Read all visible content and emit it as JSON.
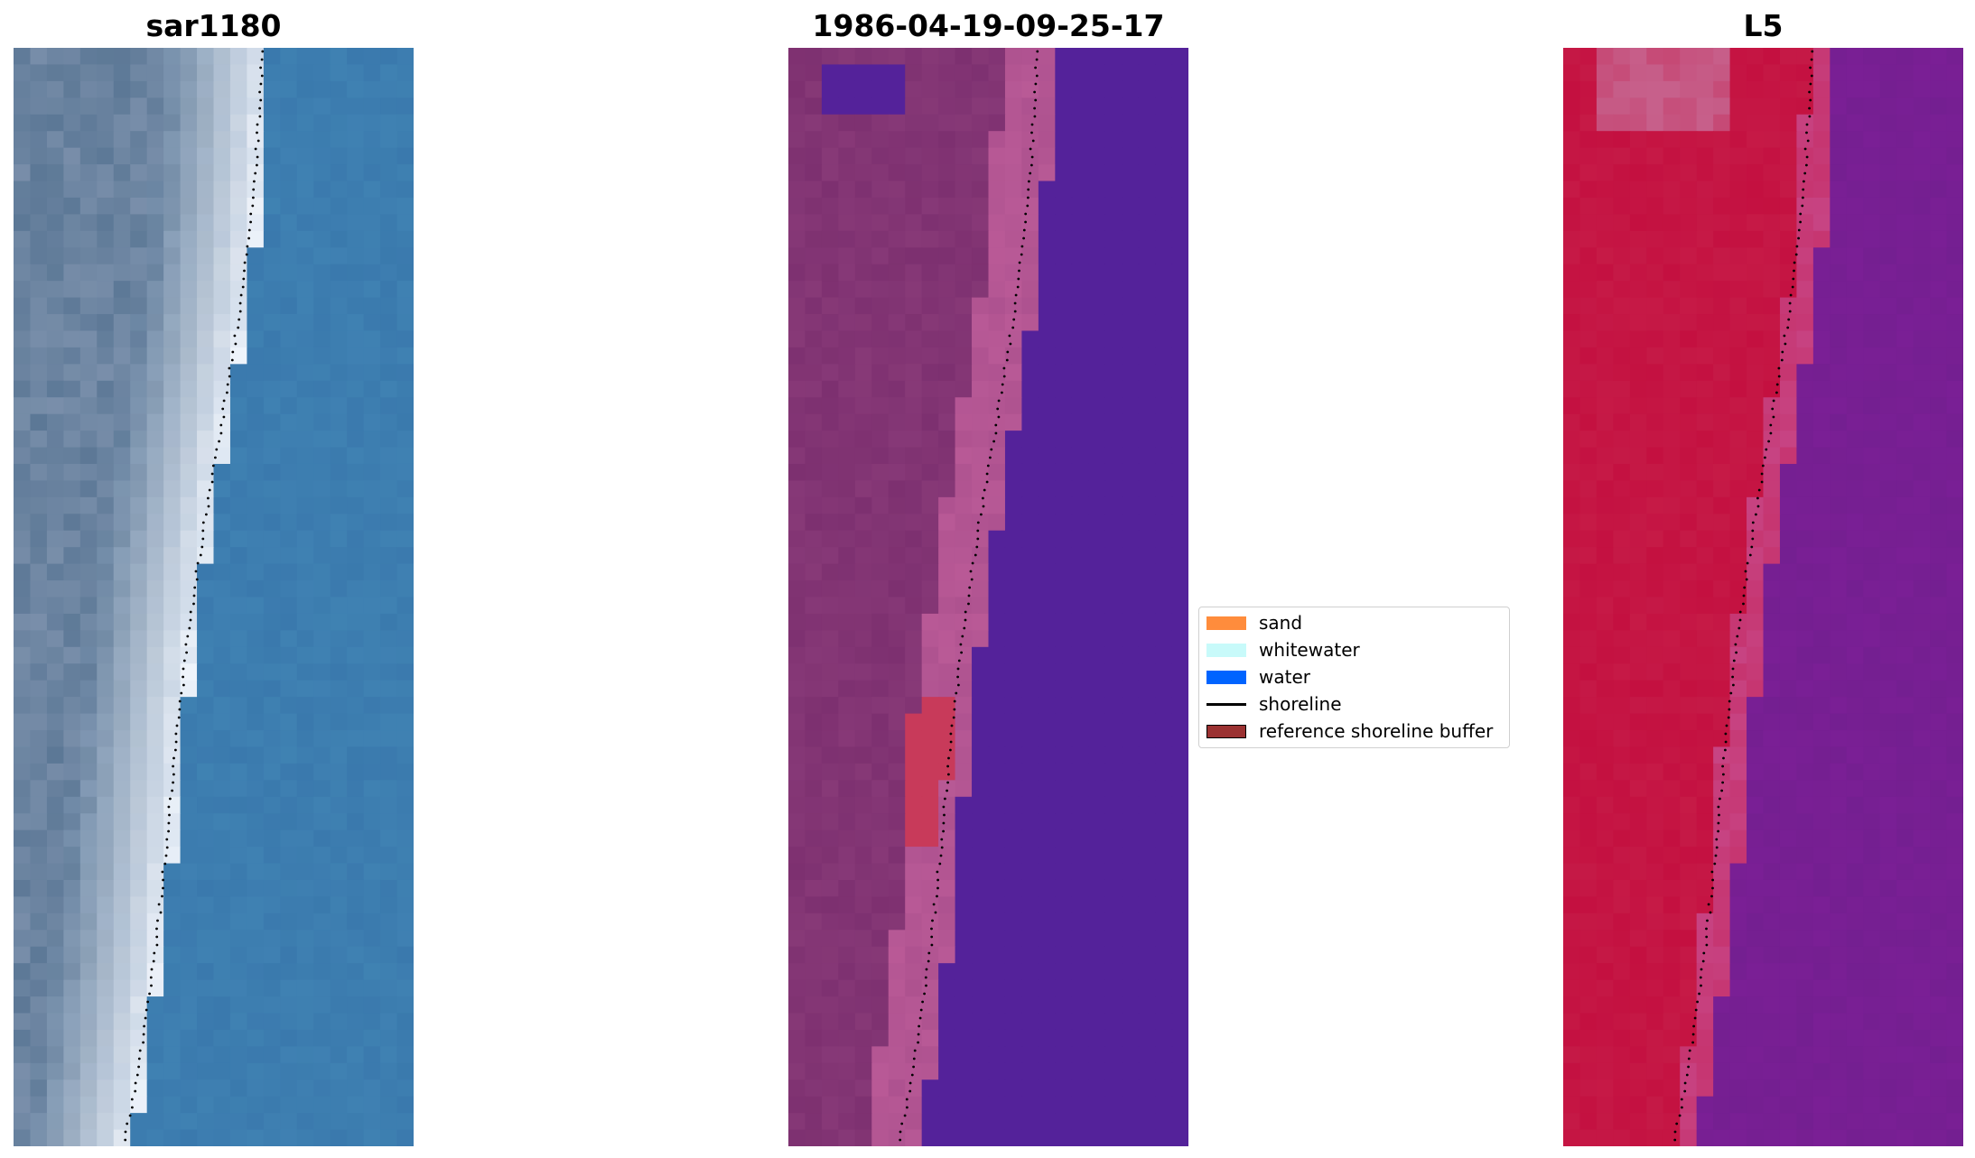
{
  "figure": {
    "panels": [
      {
        "id": "rgb",
        "title": "sar1180",
        "kind": "rgb"
      },
      {
        "id": "classified",
        "title": "1986-04-19-09-25-17",
        "kind": "classified"
      },
      {
        "id": "mndwi",
        "title": "L5",
        "kind": "index"
      }
    ],
    "legend": {
      "placement": "between middle and right panels, vertically centered",
      "items": [
        {
          "label": "sand",
          "type": "patch",
          "color": "#ff8c3c"
        },
        {
          "label": "whitewater",
          "type": "patch",
          "color": "#c8fafa"
        },
        {
          "label": "water",
          "type": "patch",
          "color": "#0064ff"
        },
        {
          "label": "shoreline",
          "type": "line",
          "color": "#000000"
        },
        {
          "label": "reference shoreline buffer",
          "type": "patch",
          "color": "#9b3232"
        }
      ]
    },
    "colors": {
      "rgb_water": "#3a79ad",
      "rgb_surf": "#e8eef6",
      "classified_water": "#54229a",
      "classified_land": "#7d3070",
      "classified_buffer": "#c83a5a",
      "index_land": "#c41040",
      "index_water": "#7a1f95"
    }
  },
  "chart_data": {
    "type": "heatmap",
    "title": [
      "sar1180",
      "1986-04-19-09-25-17",
      "L5"
    ],
    "axes": "off",
    "grid": false,
    "legend_placement": "center, between panels 2 and 3",
    "series": [
      {
        "name": "shoreline",
        "style": "black dotted line",
        "values": "overlaid on all three panels"
      }
    ],
    "legend_entries": [
      "sand",
      "whitewater",
      "water",
      "shoreline",
      "reference shoreline buffer"
    ]
  }
}
